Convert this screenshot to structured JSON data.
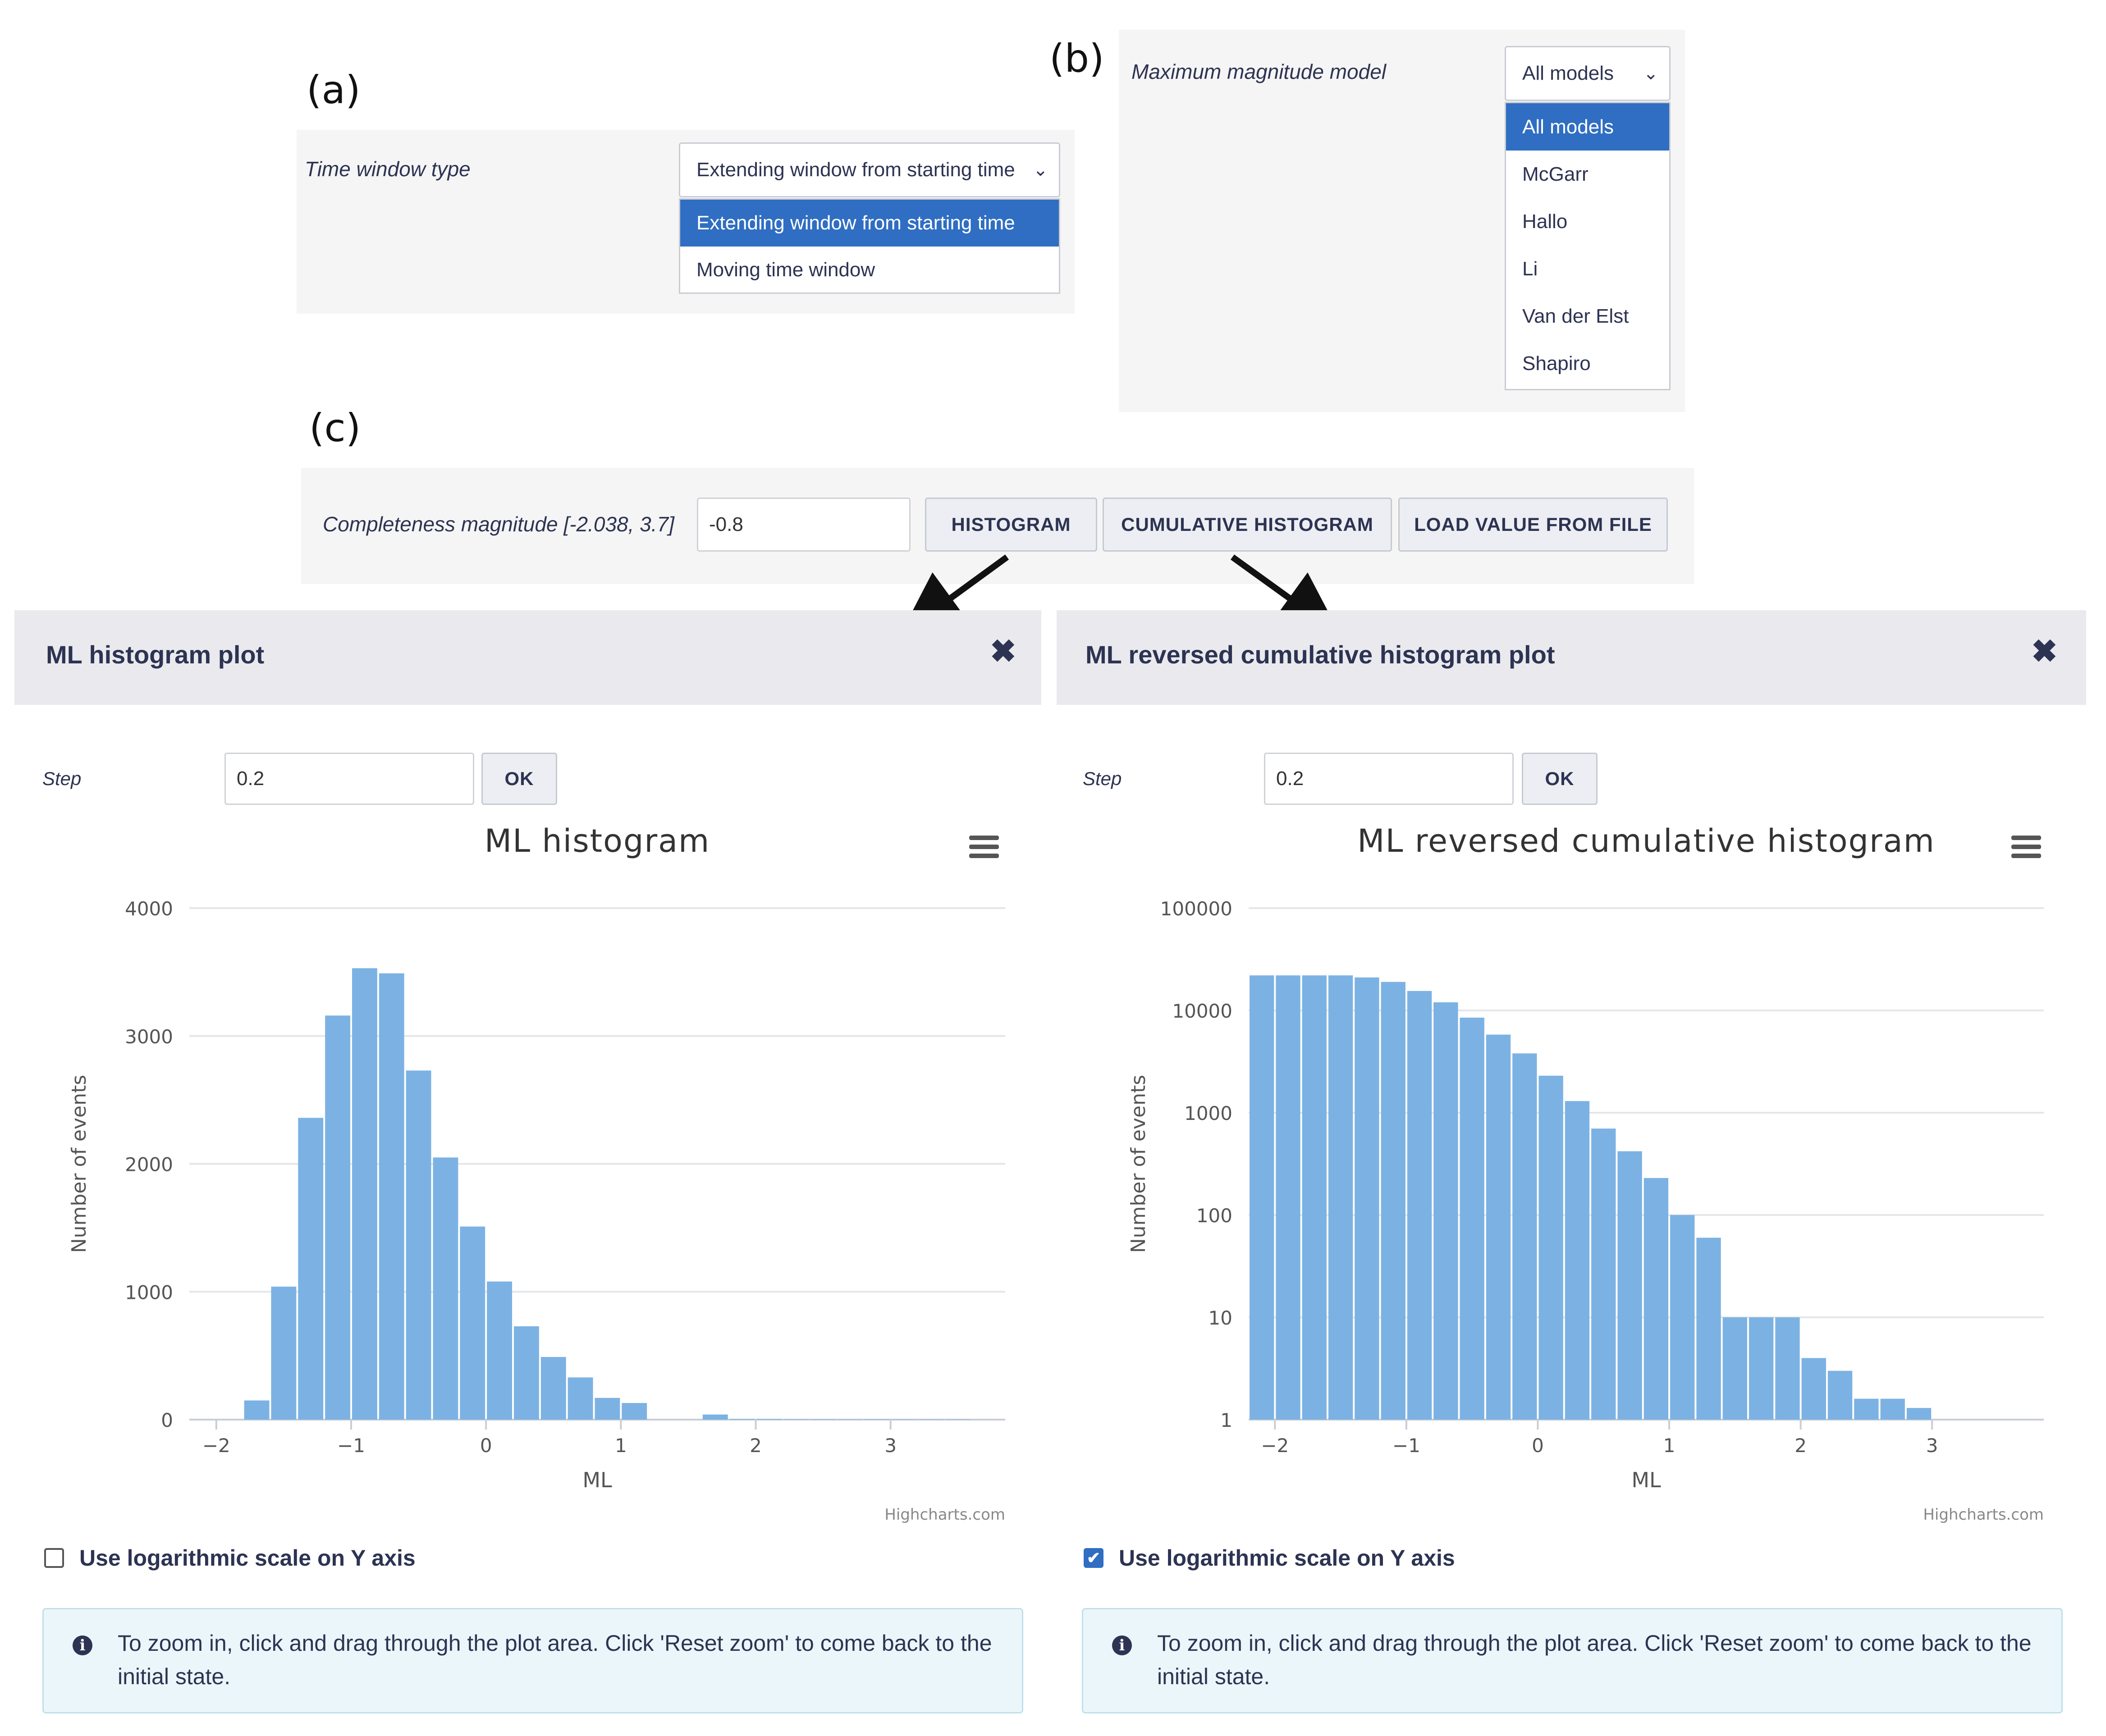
{
  "panel_a": {
    "label": "(a)",
    "field_label": "Time window type",
    "selected": "Extending window from starting time",
    "options": [
      "Extending window from starting time",
      "Moving time window"
    ]
  },
  "panel_b": {
    "label": "(b)",
    "field_label": "Maximum magnitude model",
    "selected": "All models",
    "options": [
      "All models",
      "McGarr",
      "Hallo",
      "Li",
      "Van der Elst",
      "Shapiro"
    ]
  },
  "panel_c": {
    "label": "(c)",
    "field_label": "Completeness magnitude [-2.038, 3.7]",
    "value": "-0.8",
    "buttons": {
      "histogram": "HISTOGRAM",
      "cumulative": "CUMULATIVE HISTOGRAM",
      "load": "LOAD VALUE FROM FILE"
    }
  },
  "left_modal": {
    "title": "ML histogram plot",
    "step_label": "Step",
    "step_value": "0.2",
    "ok_label": "OK",
    "log_checkbox_label": "Use logarithmic scale on Y axis",
    "log_checked": false,
    "info_line1": "To zoom in, click and drag through the plot area. Click 'Reset zoom' to come back to the",
    "info_line2": "initial state.",
    "credits": "Highcharts.com"
  },
  "right_modal": {
    "title": "ML reversed cumulative histogram plot",
    "step_label": "Step",
    "step_value": "0.2",
    "ok_label": "OK",
    "log_checkbox_label": "Use logarithmic scale on Y axis",
    "log_checked": true,
    "info_line1": "To zoom in, click and drag through the plot area. Click 'Reset zoom' to come back to the",
    "info_line2": "initial state.",
    "credits": "Highcharts.com"
  },
  "icons": {
    "close": "close-icon",
    "menu": "hamburger-menu-icon",
    "info": "info-icon",
    "chevron": "chevron-down-icon"
  },
  "colors": {
    "bar": "#7cb2e3",
    "selected_option": "#2f6ec2",
    "text": "#2d3352"
  },
  "chart_data": [
    {
      "type": "bar",
      "title": "ML histogram",
      "xlabel": "ML",
      "ylabel": "Number of events",
      "xlim": [
        -2.2,
        3.85
      ],
      "ylim": [
        0,
        4000
      ],
      "yticks": [
        0,
        1000,
        2000,
        3000,
        4000
      ],
      "xticks": [
        -2,
        -1,
        0,
        1,
        2,
        3
      ],
      "bin_width": 0.2,
      "grid": true,
      "bins_start": [
        -1.8,
        -1.6,
        -1.4,
        -1.2,
        -1.0,
        -0.8,
        -0.6,
        -0.4,
        -0.2,
        0.0,
        0.2,
        0.4,
        0.6,
        0.8,
        1.0,
        1.2,
        1.4,
        1.6,
        1.8,
        2.0,
        2.2,
        2.4,
        2.6,
        2.8,
        3.0,
        3.2,
        3.4
      ],
      "values": [
        150,
        1040,
        2360,
        3160,
        3530,
        3490,
        2730,
        2050,
        1510,
        1080,
        730,
        490,
        330,
        170,
        130,
        0,
        0,
        40,
        5,
        5,
        3,
        3,
        2,
        3,
        2,
        2,
        2
      ]
    },
    {
      "type": "bar",
      "title": "ML reversed cumulative histogram",
      "xlabel": "ML",
      "ylabel": "Number of events",
      "xlim": [
        -2.2,
        3.85
      ],
      "ylim": [
        1,
        100000
      ],
      "yscale": "log",
      "yticks": [
        1,
        10,
        100,
        1000,
        10000,
        100000
      ],
      "xticks": [
        -2,
        -1,
        0,
        1,
        2,
        3
      ],
      "bin_width": 0.2,
      "grid": true,
      "bins_start": [
        -2.2,
        -2.0,
        -1.8,
        -1.6,
        -1.4,
        -1.2,
        -1.0,
        -0.8,
        -0.6,
        -0.4,
        -0.2,
        0.0,
        0.2,
        0.4,
        0.6,
        0.8,
        1.0,
        1.2,
        1.4,
        1.6,
        1.8,
        2.0,
        2.2,
        2.4,
        2.6,
        2.8,
        3.0,
        3.2,
        3.4
      ],
      "values": [
        22000,
        22000,
        22000,
        22000,
        21000,
        19000,
        15500,
        12000,
        8500,
        5800,
        3800,
        2300,
        1300,
        700,
        420,
        230,
        100,
        60,
        10,
        10,
        10,
        4,
        3,
        1.6,
        1.6,
        1.3,
        0.5,
        0.3,
        0.3
      ]
    }
  ]
}
